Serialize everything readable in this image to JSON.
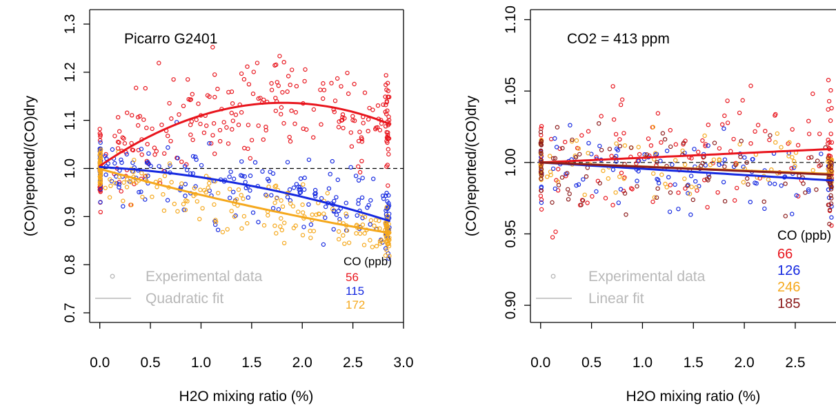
{
  "chart_data": [
    {
      "type": "scatter",
      "annotation": "Picarro G2401",
      "xlabel": "H2O mixing ratio (%)",
      "ylabel": "(CO)reported/(CO)dry",
      "xlim": [
        -0.1,
        3.0
      ],
      "ylim": [
        0.68,
        1.33
      ],
      "xticks": [
        "0.0",
        "0.5",
        "1.0",
        "1.5",
        "2.0",
        "2.5",
        "3.0"
      ],
      "yticks": [
        "0.7",
        "0.8",
        "0.9",
        "1.0",
        "1.1",
        "1.2",
        "1.3"
      ],
      "reference_line": 1.0,
      "legend_style": {
        "points_label": "Experimental data",
        "line_label": "Quadratic fit"
      },
      "legend_title": "CO (ppb)",
      "legend_placement": "bottom",
      "series": [
        {
          "name": "56",
          "color": "#e8141c",
          "fit": "quadratic",
          "fit_coef": [
            1.005,
            0.145,
            -0.04
          ],
          "scatter": {
            "center_y": 1.1,
            "spread": 0.075,
            "n": 280,
            "seed": 11
          }
        },
        {
          "name": "115",
          "color": "#1428e0",
          "fit": "quadratic",
          "fit_coef": [
            1.003,
            -0.012,
            -0.0095
          ],
          "scatter": {
            "center_y": 0.955,
            "spread": 0.05,
            "n": 240,
            "seed": 23
          }
        },
        {
          "name": "172",
          "color": "#f5a81c",
          "fit": "quadratic",
          "fit_coef": [
            0.999,
            -0.058,
            0.004
          ],
          "scatter": {
            "center_y": 0.935,
            "spread": 0.04,
            "n": 240,
            "seed": 37
          }
        }
      ]
    },
    {
      "type": "scatter",
      "annotation": "CO2 = 413 ppm",
      "xlabel": "H2O mixing ratio (%)",
      "ylabel": "(CO)reported/(CO)dry",
      "xlim": [
        -0.1,
        2.9
      ],
      "ylim": [
        0.888,
        1.107
      ],
      "xticks": [
        "0.0",
        "0.5",
        "1.0",
        "1.5",
        "2.0",
        "2.5"
      ],
      "yticks": [
        "0.90",
        "0.95",
        "1.00",
        "1.05",
        "1.10"
      ],
      "reference_line": 1.0,
      "legend_style": {
        "points_label": "Experimental data",
        "line_label": "Linear fit"
      },
      "legend_title": "CO (ppb)",
      "legend_placement": "bottom-right",
      "series": [
        {
          "name": "66",
          "color": "#e8141c",
          "fit": "linear",
          "fit_coef": [
            1.0,
            0.0033
          ],
          "scatter": {
            "center_y": 1.0,
            "spread": 0.03,
            "n": 150,
            "seed": 41
          }
        },
        {
          "name": "126",
          "color": "#1428e0",
          "fit": "linear",
          "fit_coef": [
            1.0,
            -0.0044
          ],
          "scatter": {
            "center_y": 0.99,
            "spread": 0.018,
            "n": 130,
            "seed": 53
          }
        },
        {
          "name": "246",
          "color": "#f5a81c",
          "fit": "linear",
          "fit_coef": [
            1.0,
            -0.0028
          ],
          "scatter": {
            "center_y": 0.99,
            "spread": 0.015,
            "n": 110,
            "seed": 67
          }
        },
        {
          "name": "185",
          "color": "#8b1a1a",
          "fit": "linear",
          "fit_coef": [
            1.0,
            -0.003
          ],
          "scatter": {
            "center_y": 0.99,
            "spread": 0.02,
            "n": 110,
            "seed": 79
          }
        }
      ]
    }
  ]
}
